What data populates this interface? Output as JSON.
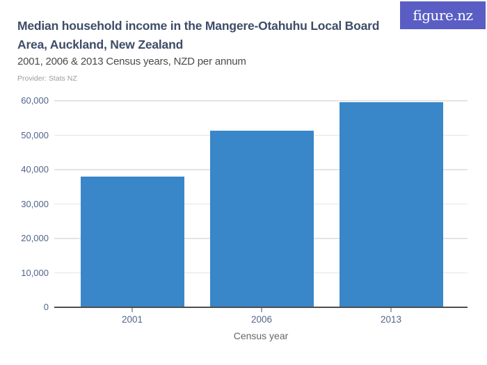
{
  "logo": {
    "text": "figure.nz",
    "bg_color": "#5a5ec4"
  },
  "header": {
    "title_lines": [
      "Median household income in the Mangere-Otahuhu Local Board",
      "Area, Auckland, New Zealand"
    ],
    "subtitle": "2001, 2006 & 2013 Census years, NZD per annum",
    "provider": "Provider: Stats NZ"
  },
  "chart_data": {
    "type": "bar",
    "title": "Median household income in the Mangere-Otahuhu Local Board Area, Auckland, New Zealand",
    "subtitle": "2001, 2006 & 2013 Census years, NZD per annum",
    "provider": "Stats NZ",
    "categories": [
      "2001",
      "2006",
      "2013"
    ],
    "values": [
      38000,
      51400,
      59600
    ],
    "xlabel": "Census year",
    "ylabel": "",
    "ylim": [
      0,
      60000
    ],
    "ytick_step": 10000,
    "ytick_labels": [
      "0",
      "10,000",
      "20,000",
      "30,000",
      "40,000",
      "50,000",
      "60,000"
    ],
    "grid": true,
    "legend": false,
    "bar_color": "#3986c9",
    "axis_color": "#4d4d4d",
    "gridline_color": "#e4e4e4",
    "tick_label_color": "#51648a"
  }
}
